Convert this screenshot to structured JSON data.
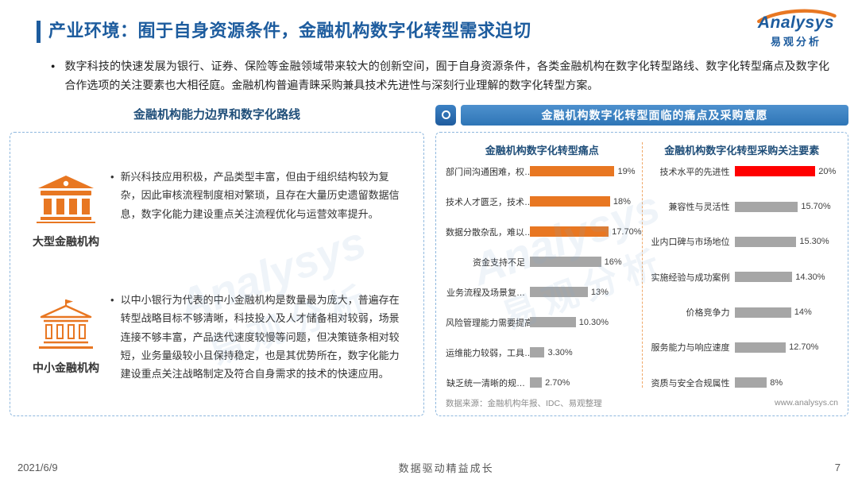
{
  "page": {
    "title": "产业环境：囿于自身资源条件，金融机构数字化转型需求迫切",
    "intro": "数字科技的快速发展为银行、证券、保险等金融领域带来较大的创新空间，囿于自身资源条件，各类金融机构在数字化转型路线、数字化转型痛点及数字化合作选项的关注要素也大相径庭。金融机构普遍青睐采购兼具技术先进性与深刻行业理解的数字化转型方案。",
    "footer": {
      "date": "2021/6/9",
      "slogan": "数据驱动精益成长",
      "page_number": "7"
    }
  },
  "logo": {
    "brand": "Analysys",
    "brand_cn": "易观分析"
  },
  "watermark": {
    "text_en": "Analysys",
    "text_cn": "易观分析"
  },
  "left_panel": {
    "title": "金融机构能力边界和数字化路线",
    "items": [
      {
        "label": "大型金融机构",
        "text": "新兴科技应用积极，产品类型丰富，但由于组织结构较为复杂，因此审核流程制度相对繁琐，且存在大量历史遗留数据信息，数字化能力建设重点关注流程优化与运营效率提升。"
      },
      {
        "label": "中小金融机构",
        "text": "以中小银行为代表的中小金融机构是数量最为庞大，普遍存在转型战略目标不够清晰，科技投入及人才储备相对较弱，场景连接不够丰富，产品迭代速度较慢等问题，但决策链条相对较短，业务量级较小且保持稳定，也是其优势所在，数字化能力建设重点关注战略制定及符合自身需求的技术的快速应用。"
      }
    ]
  },
  "right_panel": {
    "header": "金融机构数字化转型面临的痛点及采购意愿",
    "source": "数据来源：金融机构年报、IDC、易观整理",
    "website": "www.analysys.cn"
  },
  "chart_data": [
    {
      "type": "bar",
      "orientation": "horizontal",
      "title": "金融机构数字化转型痛点",
      "categories": [
        "部门间沟通困难，权…",
        "技术人才匮乏，技术…",
        "数据分散杂乱，难以…",
        "资金支持不足",
        "业务流程及场景复…",
        "风险管理能力需要提高",
        "运维能力较弱，工具…",
        "缺乏统一清晰的规…"
      ],
      "values": [
        19,
        18,
        17.7,
        16,
        13,
        10.3,
        3.3,
        2.7
      ],
      "value_labels": [
        "19%",
        "18%",
        "17.70%",
        "16%",
        "13%",
        "10.30%",
        "3.30%",
        "2.70%"
      ],
      "bar_colors": [
        "#E87722",
        "#E87722",
        "#E87722",
        "#A6A6A6",
        "#A6A6A6",
        "#A6A6A6",
        "#A6A6A6",
        "#A6A6A6"
      ],
      "xlim": [
        0,
        25
      ],
      "grid": false,
      "legend": false
    },
    {
      "type": "bar",
      "orientation": "horizontal",
      "title": "金融机构数字化转型采购关注要素",
      "categories": [
        "技术水平的先进性",
        "兼容性与灵活性",
        "业内口碑与市场地位",
        "实施经验与成功案例",
        "价格竞争力",
        "服务能力与响应速度",
        "资质与安全合规属性"
      ],
      "values": [
        20,
        15.7,
        15.3,
        14.3,
        14,
        12.7,
        8
      ],
      "value_labels": [
        "20%",
        "15.70%",
        "15.30%",
        "14.30%",
        "14%",
        "12.70%",
        "8%"
      ],
      "bar_colors": [
        "#FF0000",
        "#A6A6A6",
        "#A6A6A6",
        "#A6A6A6",
        "#A6A6A6",
        "#A6A6A6",
        "#A6A6A6"
      ],
      "xlim": [
        0,
        26
      ],
      "grid": false,
      "legend": false
    }
  ]
}
